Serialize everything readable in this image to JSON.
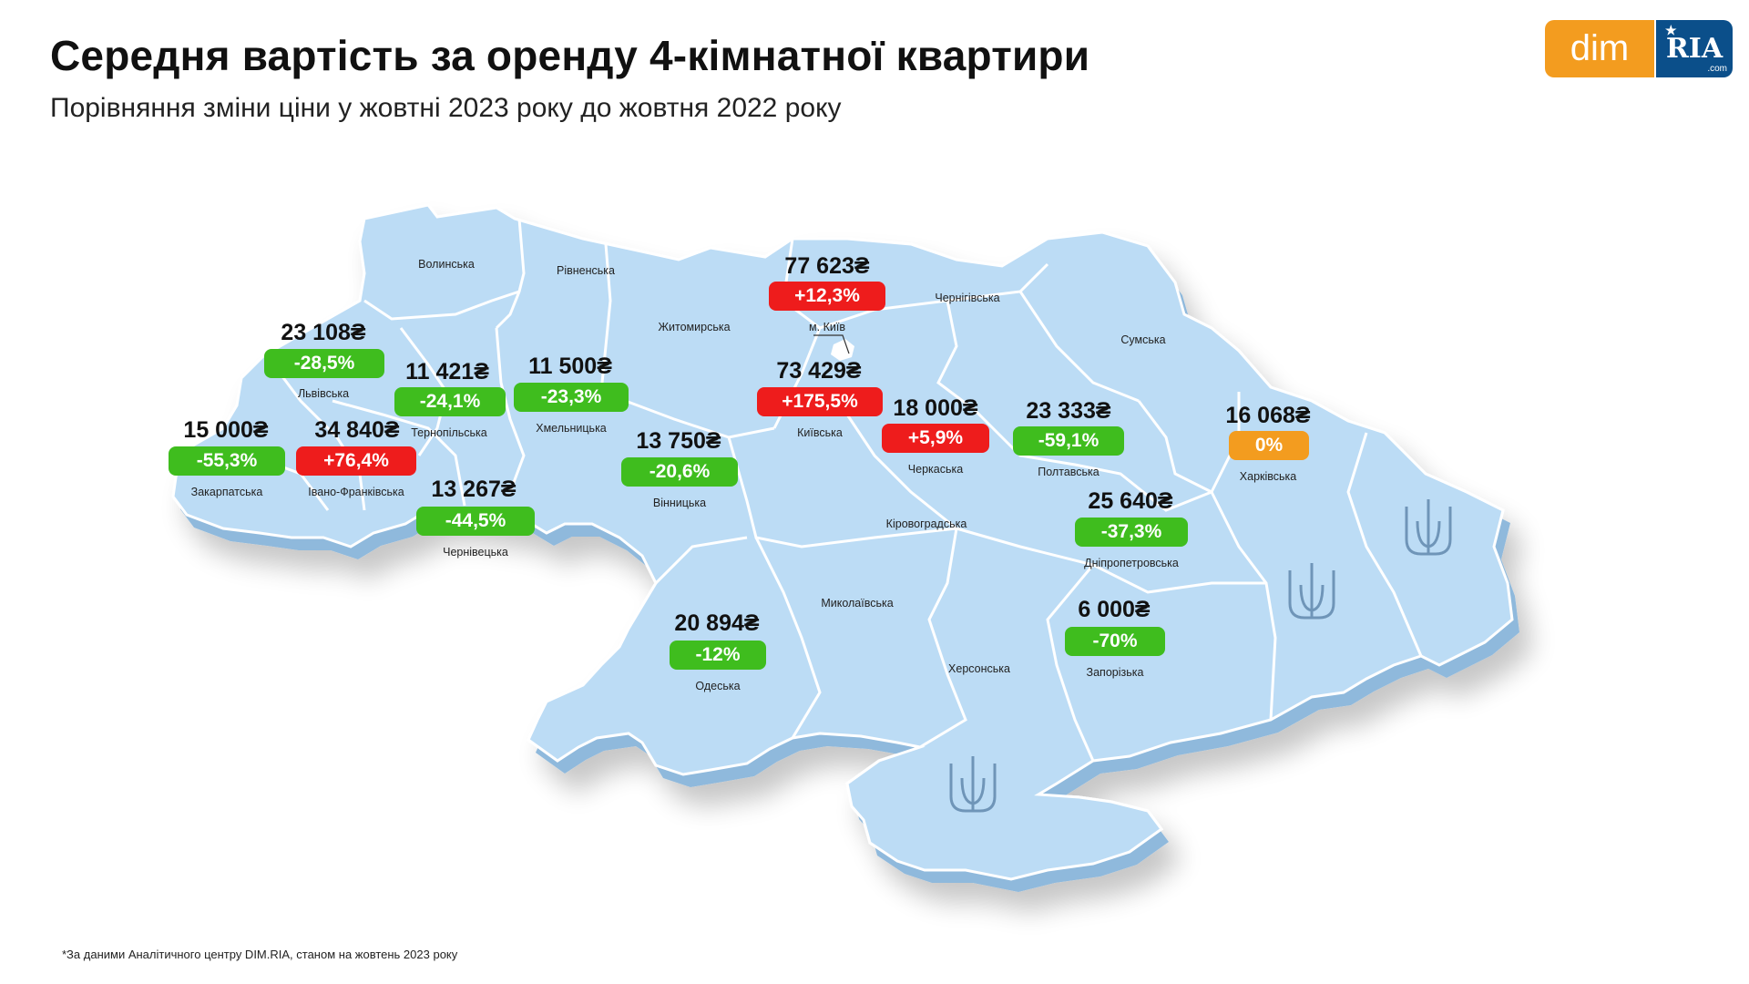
{
  "header": {
    "title": "Середня вартість за оренду 4-кімнатної квартири",
    "subtitle": "Порівняння зміни ціни у жовтні 2023 року до жовтня 2022 року"
  },
  "logo": {
    "left": "dim",
    "right": "RIA",
    "right_sub": ".com"
  },
  "colors": {
    "map_fill": "#bcdcf5",
    "map_side": "#8fb9dc",
    "border": "#ffffff",
    "down": "#3fbd1e",
    "up": "#ee1c1c",
    "zero": "#f39c1f"
  },
  "regions": [
    {
      "name": "Волинська"
    },
    {
      "name": "Рівненська"
    },
    {
      "name": "Житомирська"
    },
    {
      "name": "Чернігівська"
    },
    {
      "name": "Сумська"
    },
    {
      "name": "м. Київ",
      "price": "77 623₴",
      "change": "+12,3%",
      "trend": "red"
    },
    {
      "name": "Львівська",
      "price": "23 108₴",
      "change": "-28,5%",
      "trend": "green"
    },
    {
      "name": "Тернопільська",
      "price": "11 421₴",
      "change": "-24,1%",
      "trend": "green"
    },
    {
      "name": "Хмельницька",
      "price": "11 500₴",
      "change": "-23,3%",
      "trend": "green"
    },
    {
      "name": "Київська",
      "price": "73 429₴",
      "change": "+175,5%",
      "trend": "red"
    },
    {
      "name": "Черкаська",
      "price": "18 000₴",
      "change": "+5,9%",
      "trend": "red"
    },
    {
      "name": "Полтавська",
      "price": "23 333₴",
      "change": "-59,1%",
      "trend": "green"
    },
    {
      "name": "Харківська",
      "price": "16 068₴",
      "change": "0%",
      "trend": "orange"
    },
    {
      "name": "Закарпатська",
      "price": "15 000₴",
      "change": "-55,3%",
      "trend": "green"
    },
    {
      "name": "Івано-Франківська",
      "price": "34 840₴",
      "change": "+76,4%",
      "trend": "red"
    },
    {
      "name": "Чернівецька",
      "price": "13 267₴",
      "change": "-44,5%",
      "trend": "green"
    },
    {
      "name": "Вінницька",
      "price": "13 750₴",
      "change": "-20,6%",
      "trend": "green"
    },
    {
      "name": "Дніпропетровська",
      "price": "25 640₴",
      "change": "-37,3%",
      "trend": "green"
    },
    {
      "name": "Кіровоградська"
    },
    {
      "name": "Миколаївська"
    },
    {
      "name": "Одеська",
      "price": "20 894₴",
      "change": "-12%",
      "trend": "green"
    },
    {
      "name": "Херсонська"
    },
    {
      "name": "Запорізька",
      "price": "6 000₴",
      "change": "-70%",
      "trend": "green"
    }
  ],
  "footnote": "*За даними Аналітичного центру DIM.RIA, станом на жовтень 2023 року"
}
